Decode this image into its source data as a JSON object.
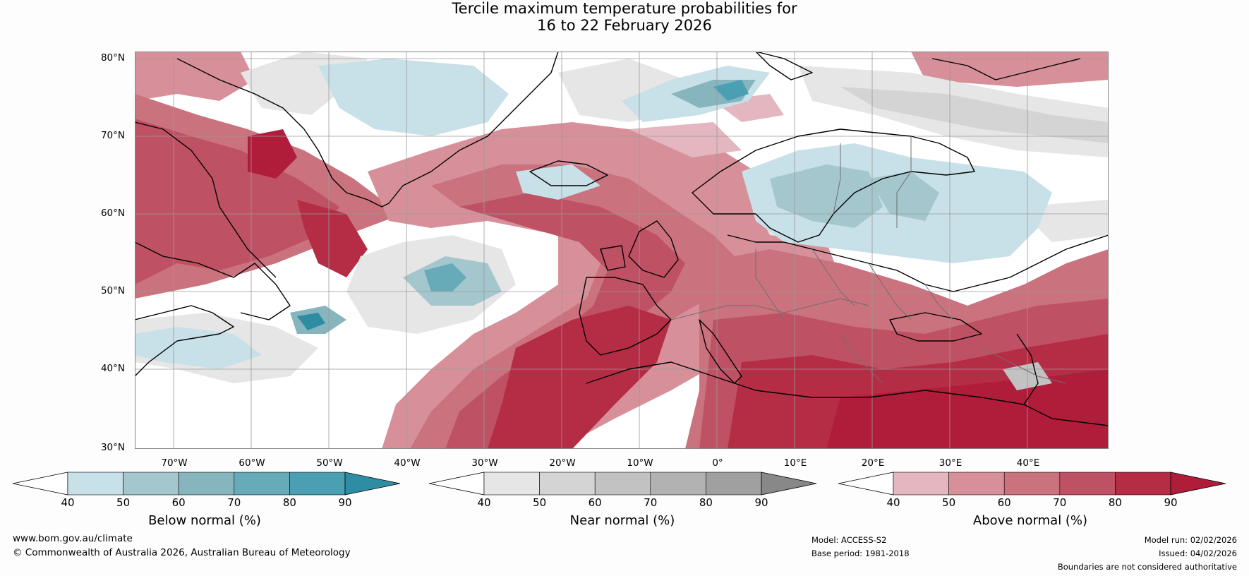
{
  "title": {
    "line1": "Tercile maximum temperature probabilities for",
    "line2": "16 to 22 February 2026"
  },
  "map": {
    "region": "North Atlantic and Europe",
    "lat_labels": [
      "80°N",
      "70°N",
      "60°N",
      "50°N",
      "40°N",
      "30°N"
    ],
    "lon_labels": [
      "70°W",
      "60°W",
      "50°W",
      "40°W",
      "30°W",
      "20°W",
      "10°W",
      "0°",
      "10°E",
      "20°E",
      "30°E",
      "40°E"
    ]
  },
  "colorbars": [
    {
      "label": "Below normal (%)",
      "ticks": [
        "40",
        "50",
        "60",
        "70",
        "80",
        "90"
      ],
      "colors": [
        "#ffffff",
        "#c8e0e7",
        "#a4c6cd",
        "#86b5be",
        "#68abb8",
        "#4a9fb2",
        "#2e8da3"
      ]
    },
    {
      "label": "Near normal (%)",
      "ticks": [
        "40",
        "50",
        "60",
        "70",
        "80",
        "90"
      ],
      "colors": [
        "#ffffff",
        "#e6e6e6",
        "#d4d4d4",
        "#c2c2c2",
        "#b2b2b2",
        "#a0a0a0",
        "#888888"
      ]
    },
    {
      "label": "Above normal (%)",
      "ticks": [
        "40",
        "50",
        "60",
        "70",
        "80",
        "90"
      ],
      "colors": [
        "#ffffff",
        "#e4b7c0",
        "#d7909a",
        "#ca727e",
        "#bf5164",
        "#b52c45",
        "#b01d3a"
      ]
    }
  ],
  "footer": {
    "website": "www.bom.gov.au/climate",
    "copyright": "© Commonwealth of Australia 2026, Australian Bureau of Meteorology",
    "model": "Model: ACCESS-S2",
    "base_period": "Base period: 1981-2018",
    "model_run": "Model run: 02/02/2026",
    "issued": "Issued: 04/02/2026",
    "disclaimer": "Boundaries are not considered authoritative"
  }
}
